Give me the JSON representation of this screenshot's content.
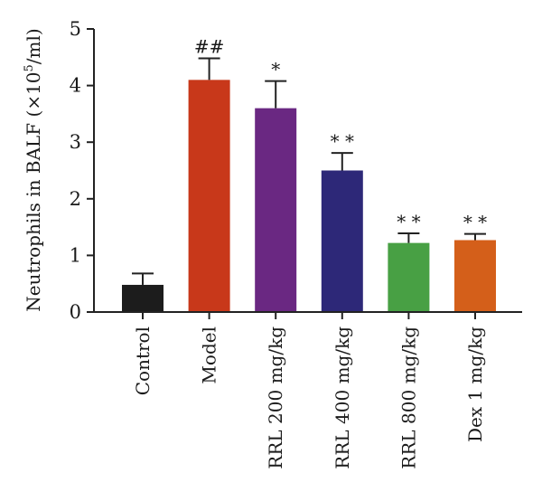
{
  "chart_data": {
    "type": "bar",
    "ylabel_prefix": "Neutrophils in BALF (×10",
    "ylabel_sup": "5",
    "ylabel_suffix": "/ml)",
    "ylim": [
      0,
      5
    ],
    "yticks": [
      "0",
      "1",
      "2",
      "3",
      "4",
      "5"
    ],
    "grid": false,
    "categories": [
      "Control",
      "Model",
      "RRL 200 mg/kg",
      "RRL 400 mg/kg",
      "RRL 800 mg/kg",
      "Dex 1 mg/kg"
    ],
    "values": [
      0.48,
      4.1,
      3.6,
      2.5,
      1.22,
      1.27
    ],
    "errors": [
      0.2,
      0.38,
      0.48,
      0.31,
      0.17,
      0.11
    ],
    "significance": [
      "",
      "##",
      "*",
      "* *",
      "* *",
      "* *"
    ],
    "colors": [
      "#1c1c1c",
      "#c8381a",
      "#6a2882",
      "#2d2878",
      "#48a044",
      "#d45f1a"
    ]
  }
}
